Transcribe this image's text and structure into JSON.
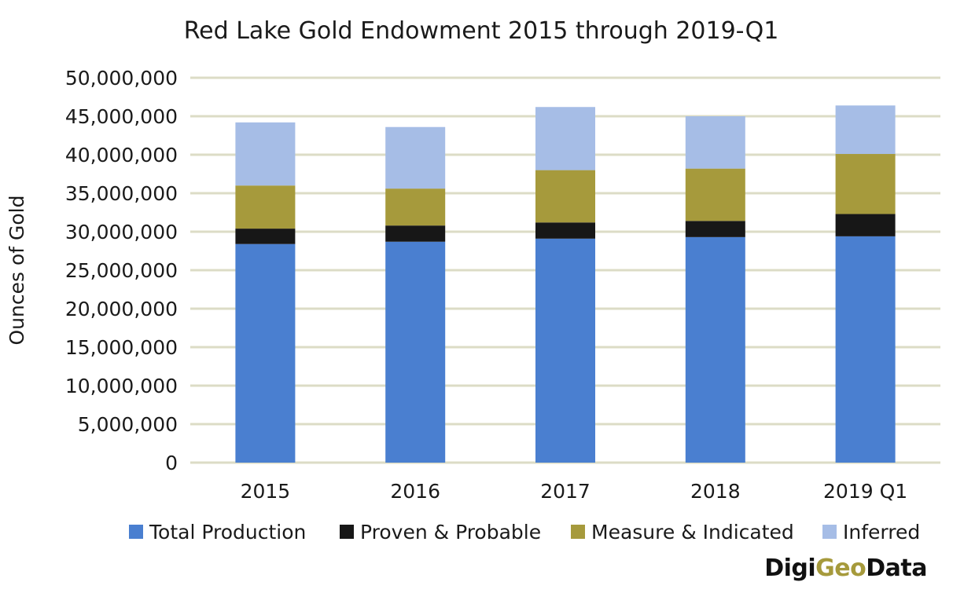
{
  "colors": {
    "total_production": "#4a7fd0",
    "proven_probable": "#171717",
    "measure_indicated": "#a69a3c",
    "inferred": "#a6bde6",
    "grid": "#dcdcc6"
  },
  "brand": {
    "part1": "Digi",
    "part2": "Geo",
    "part3": "Data"
  },
  "chart_data": {
    "type": "bar",
    "stacked": true,
    "title": "Red Lake Gold Endowment 2015 through 2019-Q1",
    "xlabel": "",
    "ylabel": "Ounces of Gold",
    "ylim": [
      0,
      50000000
    ],
    "yticks": [
      0,
      5000000,
      10000000,
      15000000,
      20000000,
      25000000,
      30000000,
      35000000,
      40000000,
      45000000,
      50000000
    ],
    "ytick_labels": [
      "0",
      "5,000,000",
      "10,000,000",
      "15,000,000",
      "20,000,000",
      "25,000,000",
      "30,000,000",
      "35,000,000",
      "40,000,000",
      "45,000,000",
      "50,000,000"
    ],
    "grid": true,
    "legend_position": "bottom",
    "categories": [
      "2015",
      "2016",
      "2017",
      "2018",
      "2019 Q1"
    ],
    "series": [
      {
        "name": "Total Production",
        "color_key": "total_production",
        "values": [
          28400000,
          28700000,
          29100000,
          29300000,
          29400000
        ]
      },
      {
        "name": "Proven & Probable",
        "color_key": "proven_probable",
        "values": [
          2000000,
          2100000,
          2100000,
          2100000,
          2900000
        ]
      },
      {
        "name": "Measure & Indicated",
        "color_key": "measure_indicated",
        "values": [
          5600000,
          4800000,
          6800000,
          6800000,
          7800000
        ]
      },
      {
        "name": "Inferred",
        "color_key": "inferred",
        "values": [
          8200000,
          8000000,
          8200000,
          6800000,
          6300000
        ]
      }
    ]
  }
}
